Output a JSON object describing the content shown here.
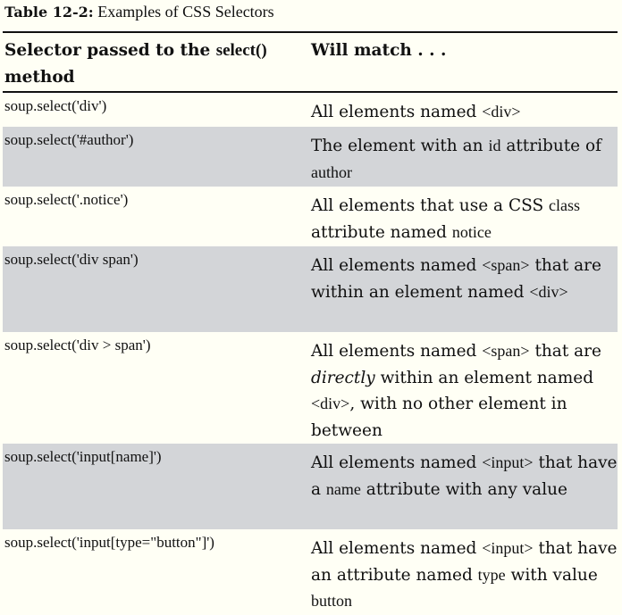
{
  "caption": {
    "label": "Table 12-2:",
    "text": " Examples of CSS Selectors"
  },
  "header": {
    "col1_a": "Selector passed to the ",
    "col1_code": "select()",
    "col1_b": "method",
    "col2": "Will match . . ."
  },
  "rows": [
    {
      "selector": "soup.select('div')",
      "desc": [
        "All elements named ",
        "<div>"
      ]
    },
    {
      "selector": "soup.select('#author')",
      "desc": [
        "The element with an ",
        "id",
        " attribute of ",
        "author"
      ]
    },
    {
      "selector": "soup.select('.notice')",
      "desc": [
        "All elements that use a CSS ",
        "class",
        " attribute named ",
        "notice"
      ]
    },
    {
      "selector": "soup.select('div span')",
      "desc": [
        "All elements named ",
        "<span>",
        " that are within an element named ",
        "<div>"
      ]
    },
    {
      "selector": "soup.select('div > span')",
      "desc": [
        "All elements named ",
        "<span>",
        " that are ",
        "directly",
        " within an element named ",
        "<div>",
        ", with no other element in between"
      ]
    },
    {
      "selector": "soup.select('input[name]')",
      "desc": [
        "All elements named ",
        "<input>",
        " that have a ",
        "name",
        " attribute with any value"
      ]
    },
    {
      "selector": "soup.select('input[type=\"button\"]')",
      "desc": [
        "All elements named ",
        "<input>",
        " that have an attribute named ",
        "type",
        " with value ",
        "button"
      ]
    }
  ],
  "colors": {
    "shade": "#d3d5d8",
    "background": "#fffff5"
  }
}
